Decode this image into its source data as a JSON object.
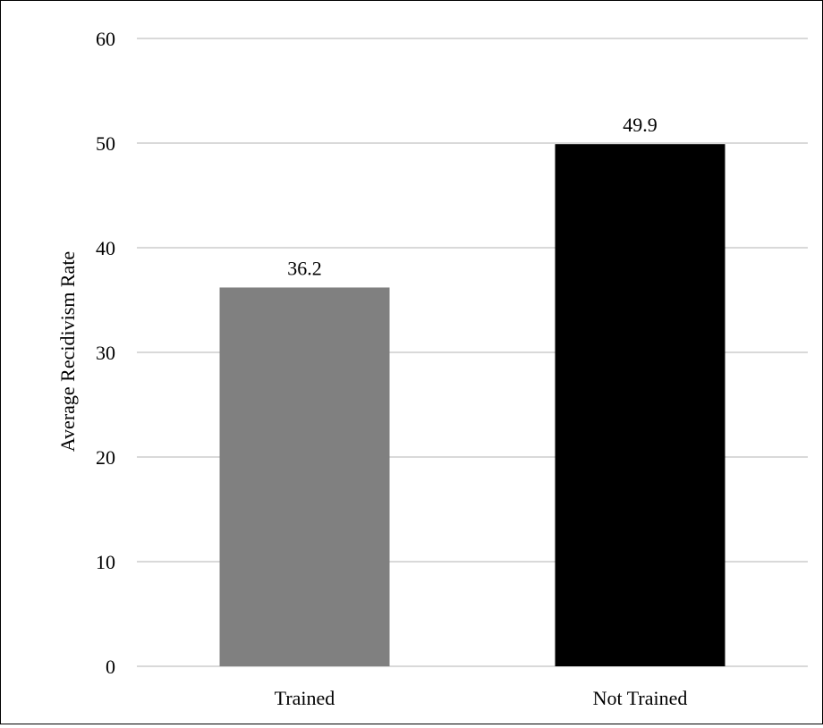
{
  "chart_data": {
    "type": "bar",
    "title": "",
    "xlabel": "",
    "ylabel": "Average Recidivism Rate",
    "categories": [
      "Trained",
      "Not Trained"
    ],
    "values": [
      36.2,
      49.9
    ],
    "data_labels": [
      "36.2",
      "49.9"
    ],
    "bar_colors": [
      "#808080",
      "#000000"
    ],
    "ylim": [
      0,
      60
    ],
    "yticks": [
      0,
      10,
      20,
      30,
      40,
      50,
      60
    ],
    "ytick_labels": [
      "0",
      "10",
      "20",
      "30",
      "40",
      "50",
      "60"
    ],
    "grid": true,
    "grid_color": "#d9d9d9",
    "legend": "none"
  }
}
